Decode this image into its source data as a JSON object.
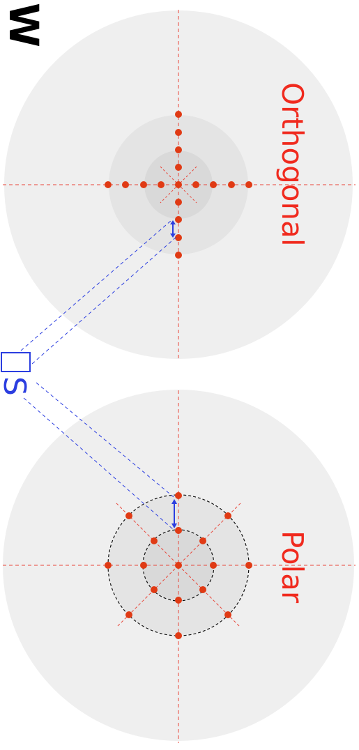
{
  "labels": {
    "orthogonal": "Orthogonal",
    "polar": "Polar",
    "s_label": "S",
    "top_fragment": "W"
  },
  "colors": {
    "background": "#ffffff",
    "disk_outer": "#efefef",
    "disk_mid": "#e4e4e4",
    "disk_inner": "#d9d9d9",
    "axis_red": "#e8463a",
    "point_red": "#e03a14",
    "guide_blue": "#2b3ee0",
    "ring_black": "#111111",
    "label_red": "#f02a1e"
  },
  "icons": {
    "point": "red-dot",
    "arrow": "double-headed-arrow",
    "source": "rectangle-outline"
  }
}
